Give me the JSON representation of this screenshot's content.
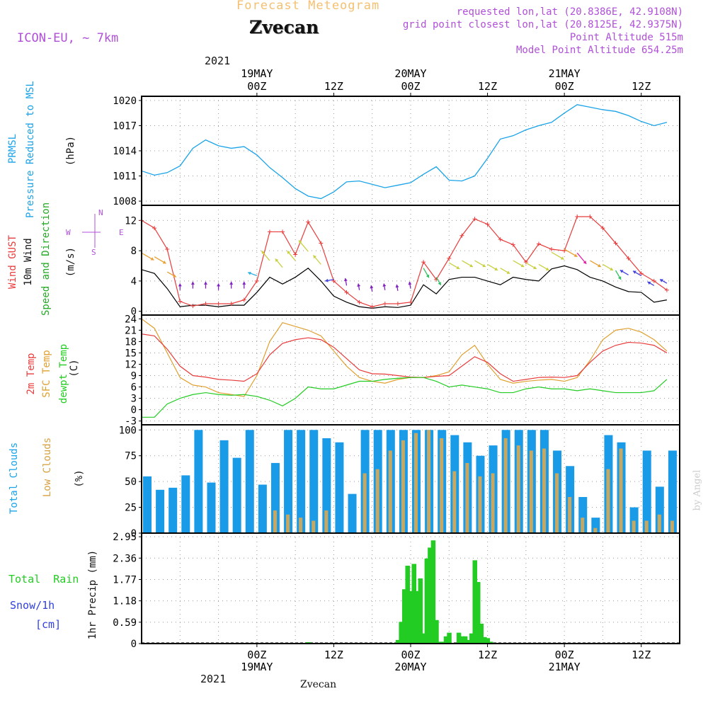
{
  "header": {
    "title": "Forecast Meteogram",
    "location": "Zvecan",
    "model": "ICON-EU, ~ 7km",
    "requested": "requested lon,lat (20.8386E, 42.9108N)",
    "grid_point": "grid point closest lon,lat (20.8125E, 42.9375N)",
    "point_altitude": "Point Altitude 515m",
    "model_altitude": "Model Point Altitude 654.25m",
    "watermark": "by Angel",
    "footer_location": "Zvecan"
  },
  "time_axis": {
    "top_year": "2021",
    "bottom_year": "2021",
    "ticks": [
      {
        "hour": 18,
        "time": "00Z",
        "date": "19MAY"
      },
      {
        "hour": 30,
        "time": "12Z",
        "date": ""
      },
      {
        "hour": 42,
        "time": "00Z",
        "date": "20MAY"
      },
      {
        "hour": 54,
        "time": "12Z",
        "date": ""
      },
      {
        "hour": 66,
        "time": "00Z",
        "date": "21MAY"
      },
      {
        "hour": 78,
        "time": "12Z",
        "date": ""
      }
    ]
  },
  "panels": {
    "pressure": {
      "label_line1": "PRMSL",
      "label_line2": "Pressure Reduced to MSL",
      "unit": "(hPa)"
    },
    "wind": {
      "label_gust": "Wind GUST",
      "label_wind": "10m Wind",
      "label_dir": "Speed and Direction",
      "unit": "(m/s)",
      "compass_n": "N",
      "compass_s": "S",
      "compass_w": "W",
      "compass_e": "E"
    },
    "temp": {
      "label_t2m": "2m Temp",
      "label_sfc": "SFC Temp",
      "label_dew": "dewpt Temp",
      "unit": "(C)"
    },
    "clouds": {
      "label_total": "Total Clouds",
      "label_low": "Low Clouds",
      "unit": "(%)"
    },
    "precip": {
      "label_rain": "Total  Rain",
      "label_snow": "Snow/1h",
      "label_snow_unit": "[cm]",
      "axis_label": "1hr Precip (mm)"
    }
  },
  "colors": {
    "pressure": "#1aa3e8",
    "gust": "#e83c3c",
    "wind": "#000000",
    "t2m": "#e83c3c",
    "sfc": "#e0a030",
    "dew": "#22cc22",
    "total_clouds": "#1a9be8",
    "low_clouds": "#c8a860",
    "rain": "#22cc22",
    "title": "#f5c070",
    "info": "#b050d8",
    "snow": "#3040e0"
  },
  "chart_data": [
    {
      "type": "line",
      "name": "pressure",
      "xlabel": "",
      "ylabel": "(hPa)",
      "ylim": [
        1007.5,
        1020.5
      ],
      "yticks": [
        1008,
        1011,
        1014,
        1017,
        1020
      ],
      "x": [
        0,
        2,
        4,
        6,
        8,
        10,
        12,
        14,
        16,
        18,
        20,
        22,
        24,
        26,
        28,
        30,
        32,
        34,
        36,
        38,
        40,
        42,
        44,
        46,
        48,
        50,
        52,
        54,
        56,
        58,
        60,
        62,
        64,
        66,
        68,
        70,
        72,
        74,
        76,
        78,
        80,
        82
      ],
      "series": [
        {
          "values": [
            1011.6,
            1011.1,
            1011.4,
            1012.2,
            1014.3,
            1015.3,
            1014.6,
            1014.3,
            1014.5,
            1013.5,
            1012.0,
            1010.8,
            1009.5,
            1008.6,
            1008.3,
            1009.1,
            1010.3,
            1010.4,
            1010.0,
            1009.6,
            1009.9,
            1010.2,
            1011.2,
            1012.1,
            1010.5,
            1010.4,
            1011.0,
            1013.1,
            1015.4,
            1015.8,
            1016.5,
            1017.0,
            1017.4,
            1018.5,
            1019.5,
            1019.2,
            1018.9,
            1018.7,
            1018.2,
            1017.5,
            1017.0,
            1017.4
          ]
        }
      ]
    },
    {
      "type": "line",
      "name": "wind",
      "ylabel": "(m/s)",
      "ylim": [
        -0.5,
        14
      ],
      "yticks": [
        0,
        4,
        8,
        12
      ],
      "x": [
        0,
        2,
        4,
        6,
        8,
        10,
        12,
        14,
        16,
        18,
        20,
        22,
        24,
        26,
        28,
        30,
        32,
        34,
        36,
        38,
        40,
        42,
        44,
        46,
        48,
        50,
        52,
        54,
        56,
        58,
        60,
        62,
        64,
        66,
        68,
        70,
        72,
        74,
        76,
        78,
        80,
        82
      ],
      "series": [
        {
          "name": "Wind GUST",
          "values": [
            12.0,
            11.0,
            8.2,
            1.3,
            0.7,
            1.0,
            1.0,
            1.0,
            1.5,
            4.0,
            10.5,
            10.5,
            7.5,
            11.8,
            9.0,
            4.0,
            2.5,
            1.2,
            0.6,
            1.0,
            1.0,
            1.2,
            6.5,
            4.2,
            7.0,
            10.0,
            12.2,
            11.5,
            9.5,
            8.8,
            6.5,
            8.9,
            8.2,
            8.0,
            12.5,
            12.5,
            11.0,
            9.0,
            7.0,
            5.0,
            4.0,
            2.8
          ]
        },
        {
          "name": "10m Wind",
          "values": [
            5.5,
            5.0,
            3.0,
            0.6,
            0.8,
            0.8,
            0.6,
            0.8,
            0.8,
            2.5,
            4.5,
            3.6,
            4.5,
            5.7,
            4.0,
            2.0,
            1.2,
            0.6,
            0.4,
            0.6,
            0.5,
            0.8,
            3.5,
            2.3,
            4.2,
            4.5,
            4.5,
            4.0,
            3.5,
            4.5,
            4.2,
            4.0,
            5.6,
            6.0,
            5.5,
            4.5,
            4.0,
            3.2,
            2.6,
            2.5,
            1.2,
            1.5
          ]
        }
      ]
    },
    {
      "type": "line",
      "name": "temperature",
      "ylabel": "(C)",
      "ylim": [
        -4,
        25
      ],
      "yticks": [
        -3,
        0,
        3,
        6,
        9,
        12,
        15,
        18,
        21,
        24
      ],
      "x": [
        0,
        2,
        4,
        6,
        8,
        10,
        12,
        14,
        16,
        18,
        20,
        22,
        24,
        26,
        28,
        30,
        32,
        34,
        36,
        38,
        40,
        42,
        44,
        46,
        48,
        50,
        52,
        54,
        56,
        58,
        60,
        62,
        64,
        66,
        68,
        70,
        72,
        74,
        76,
        78,
        80,
        82
      ],
      "series": [
        {
          "name": "2m Temp",
          "values": [
            20.0,
            19.5,
            16.0,
            11.5,
            9.0,
            8.6,
            8.0,
            7.8,
            7.5,
            9.5,
            14.5,
            17.5,
            18.5,
            19.0,
            18.5,
            16.5,
            13.5,
            10.5,
            9.5,
            9.4,
            9.0,
            8.6,
            8.5,
            8.8,
            9.0,
            11.5,
            14.0,
            12.5,
            9.5,
            7.5,
            8.0,
            8.5,
            8.6,
            8.5,
            9.0,
            12.5,
            15.5,
            17.0,
            17.8,
            17.6,
            17.0,
            15.0
          ]
        },
        {
          "name": "SFC Temp",
          "values": [
            24.0,
            21.5,
            15.0,
            8.5,
            6.5,
            6.0,
            4.5,
            4.0,
            3.5,
            9.0,
            18.0,
            23.0,
            22.0,
            21.0,
            19.5,
            15.5,
            11.5,
            8.5,
            7.5,
            7.0,
            8.0,
            8.5,
            8.5,
            9.0,
            10.0,
            14.5,
            17.0,
            12.0,
            8.0,
            7.0,
            7.5,
            7.8,
            8.0,
            7.5,
            8.5,
            13.0,
            18.5,
            21.0,
            21.5,
            20.5,
            18.5,
            15.5
          ]
        },
        {
          "name": "dewpt Temp",
          "values": [
            -2.0,
            -2.0,
            1.5,
            3.0,
            4.0,
            4.5,
            4.0,
            3.8,
            4.0,
            3.5,
            2.5,
            1.0,
            3.0,
            6.0,
            5.5,
            5.5,
            6.5,
            7.5,
            7.5,
            8.0,
            8.3,
            8.5,
            8.5,
            7.5,
            6.0,
            6.5,
            6.0,
            5.5,
            4.5,
            4.5,
            5.5,
            6.0,
            5.5,
            5.5,
            5.0,
            5.5,
            5.0,
            4.5,
            4.5,
            4.5,
            5.0,
            8.0
          ]
        }
      ]
    },
    {
      "type": "bar",
      "name": "clouds",
      "ylabel": "(%)",
      "ylim": [
        0,
        105
      ],
      "yticks": [
        0,
        25,
        50,
        75,
        100
      ],
      "x": [
        0,
        2,
        4,
        6,
        8,
        10,
        12,
        14,
        16,
        18,
        20,
        22,
        24,
        26,
        28,
        30,
        32,
        34,
        36,
        38,
        40,
        42,
        44,
        46,
        48,
        50,
        52,
        54,
        56,
        58,
        60,
        62,
        64,
        66,
        68,
        70,
        72,
        74,
        76,
        78,
        80,
        82
      ],
      "series": [
        {
          "name": "Total Clouds",
          "values": [
            55,
            42,
            44,
            56,
            100,
            49,
            90,
            73,
            100,
            47,
            68,
            100,
            100,
            100,
            92,
            88,
            38,
            100,
            100,
            100,
            100,
            100,
            100,
            100,
            95,
            88,
            75,
            85,
            100,
            100,
            100,
            100,
            80,
            65,
            35,
            15,
            95,
            88,
            25,
            80,
            45,
            80
          ]
        },
        {
          "name": "Low Clouds",
          "values": [
            0,
            0,
            0,
            0,
            0,
            0,
            0,
            0,
            0,
            0,
            22,
            18,
            15,
            12,
            22,
            0,
            0,
            58,
            62,
            80,
            90,
            97,
            100,
            92,
            60,
            68,
            55,
            58,
            92,
            85,
            80,
            82,
            58,
            35,
            15,
            5,
            62,
            82,
            12,
            12,
            18,
            12
          ]
        }
      ]
    },
    {
      "type": "bar",
      "name": "precipitation",
      "ylabel": "1hr Precip (mm)",
      "ylim": [
        0,
        3.05
      ],
      "yticks": [
        0,
        0.59,
        1.18,
        1.77,
        2.36,
        2.95
      ],
      "x": [
        16.5,
        17,
        26,
        34,
        40,
        40.5,
        41,
        41.5,
        42,
        42.5,
        43,
        43.5,
        44,
        44.5,
        45,
        45.5,
        46,
        46.5,
        47,
        47.5,
        48,
        49.5,
        50,
        50.5,
        51,
        51.5,
        52,
        52.5,
        53,
        53.5,
        54,
        54.5,
        55,
        55.5,
        56
      ],
      "series": [
        {
          "name": "Total Rain",
          "values": [
            0.02,
            0.02,
            0.04,
            0.02,
            0.1,
            0.6,
            1.5,
            2.15,
            1.45,
            2.2,
            1.45,
            1.8,
            0.28,
            2.35,
            2.65,
            2.85,
            0.65,
            0.05,
            0.05,
            0.2,
            0.3,
            0.3,
            0.2,
            0.2,
            0.1,
            0.28,
            2.3,
            1.7,
            0.55,
            0.18,
            0.15,
            0.05,
            0.02,
            0.0,
            0.0
          ]
        }
      ]
    }
  ]
}
